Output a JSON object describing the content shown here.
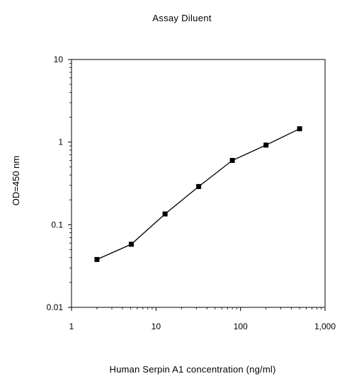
{
  "chart_data": {
    "type": "line",
    "title": "Assay Diluent",
    "xlabel": "Human Serpin A1 concentration (ng/ml)",
    "ylabel": "OD=450 nm",
    "xscale": "log",
    "yscale": "log",
    "xlim": [
      1,
      1000
    ],
    "ylim": [
      0.01,
      10
    ],
    "x_ticks": [
      1,
      10,
      100,
      1000
    ],
    "x_tick_labels": [
      "1",
      "10",
      "100",
      "1,000"
    ],
    "y_ticks": [
      0.01,
      0.1,
      1,
      10
    ],
    "y_tick_labels": [
      "0.01",
      "0.1",
      "1",
      "10"
    ],
    "grid": false,
    "series": [
      {
        "x": [
          2.0,
          5.1,
          12.8,
          32.0,
          80.0,
          200.0,
          500.0
        ],
        "y": [
          0.038,
          0.058,
          0.135,
          0.29,
          0.6,
          0.92,
          1.45
        ],
        "color": "#000000",
        "marker": "square"
      }
    ]
  }
}
